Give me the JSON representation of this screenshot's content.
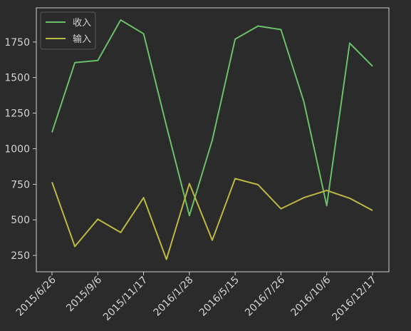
{
  "chart_data": {
    "type": "line",
    "x": [
      "2015/6/26",
      "2015/8/1",
      "2015/9/6",
      "2015/10/12",
      "2015/11/17",
      "2015/12/23",
      "2016/1/28",
      "2016/3/4",
      "2016/5/15",
      "2016/6/20",
      "2016/7/26",
      "2016/8/31",
      "2016/10/6",
      "2016/11/11",
      "2016/12/17"
    ],
    "x_tick_labels": [
      "2015/6/26",
      "2015/9/6",
      "2015/11/17",
      "2016/1/28",
      "2016/5/15",
      "2016/7/26",
      "2016/10/6",
      "2016/12/17"
    ],
    "series": [
      {
        "name": "收入",
        "color": "#6abf69",
        "values": [
          1115,
          1605,
          1620,
          1905,
          1808,
          1160,
          530,
          1060,
          1770,
          1862,
          1837,
          1330,
          600,
          1742,
          1580
        ]
      },
      {
        "name": "输入",
        "color": "#bcb844",
        "values": [
          765,
          313,
          505,
          411,
          656,
          222,
          755,
          357,
          790,
          747,
          578,
          656,
          707,
          652,
          566
        ]
      }
    ],
    "y_ticks": [
      250,
      500,
      750,
      1000,
      1250,
      1500,
      1750
    ],
    "ylim": [
      135,
      1990
    ],
    "legend_position": "top-left",
    "grid": false,
    "title": "",
    "xlabel": "",
    "ylabel": ""
  }
}
